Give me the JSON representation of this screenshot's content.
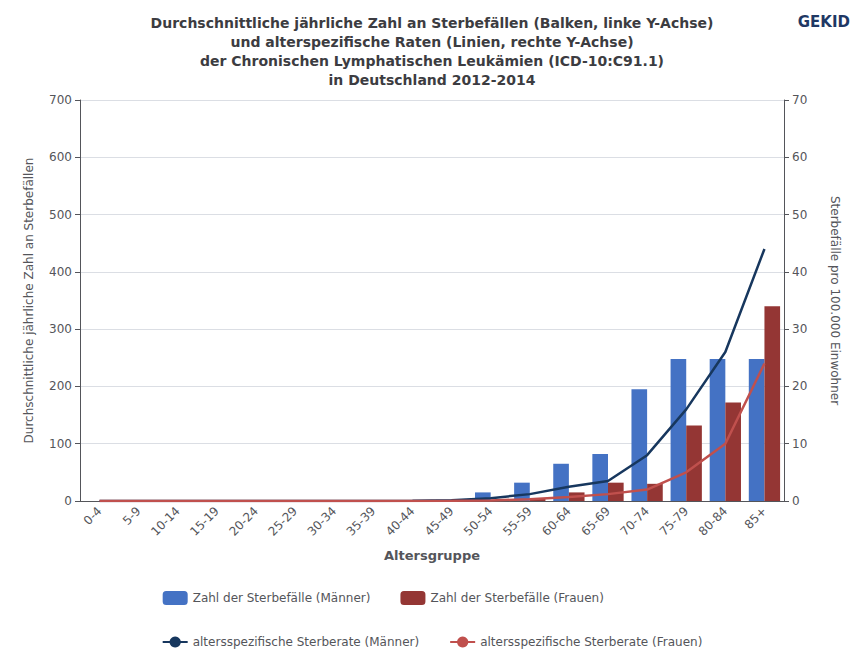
{
  "chart_data": {
    "type": "bar",
    "title": "Durchschnittliche jährliche Zahl an Sterbefällen (Balken, linke Y-Achse)\nund alterspezifische Raten (Linien, rechte Y-Achse)\nder Chronischen Lymphatischen Leukämien (ICD-10:C91.1)\nin Deutschland 2012-2014",
    "annotations": [
      "GEKID"
    ],
    "xlabel": "Altersgruppe",
    "ylabel": "Durchschnittliche jährliche Zahl an Sterbefällen",
    "y2label": "Sterbefälle pro 100.000 Einwohner",
    "categories": [
      "0-4",
      "5-9",
      "10-14",
      "15-19",
      "20-24",
      "25-29",
      "30-34",
      "35-39",
      "40-44",
      "45-49",
      "50-54",
      "55-59",
      "60-64",
      "65-69",
      "70-74",
      "75-79",
      "80-84",
      "85+"
    ],
    "series": [
      {
        "name": "Zahl der Sterbefälle (Männer)",
        "type": "bar",
        "color": "#4472C4",
        "values": [
          0,
          0,
          0,
          0,
          0,
          0,
          0,
          0,
          0,
          2,
          15,
          32,
          65,
          82,
          195,
          248,
          248,
          248
        ]
      },
      {
        "name": "Zahl der Sterbefälle (Frauen)",
        "type": "bar",
        "color": "#943634",
        "values": [
          0,
          0,
          0,
          0,
          0,
          0,
          0,
          0,
          0,
          0,
          0,
          5,
          15,
          32,
          30,
          132,
          172,
          340
        ]
      },
      {
        "name": "altersspezifische Sterberate (Männer)",
        "type": "line",
        "axis": "y2",
        "color": "#17375E",
        "values": [
          0,
          0,
          0,
          0,
          0,
          0,
          0,
          0,
          0.05,
          0.15,
          0.5,
          1.2,
          2.5,
          3.5,
          8.0,
          16.0,
          26.0,
          44.0
        ]
      },
      {
        "name": "altersspezifische Sterberate (Frauen)",
        "type": "line",
        "axis": "y2",
        "color": "#C0504D",
        "values": [
          0,
          0,
          0,
          0,
          0,
          0,
          0,
          0,
          0.02,
          0.05,
          0.1,
          0.3,
          0.7,
          1.2,
          2.0,
          5.0,
          10.0,
          24.0
        ]
      }
    ],
    "ylim": [
      0,
      700
    ],
    "yticks": [
      0,
      100,
      200,
      300,
      400,
      500,
      600,
      700
    ],
    "y2lim": [
      0,
      70
    ],
    "y2ticks": [
      0,
      10,
      20,
      30,
      40,
      50,
      60,
      70
    ],
    "grid": true,
    "legend": "bottom"
  }
}
